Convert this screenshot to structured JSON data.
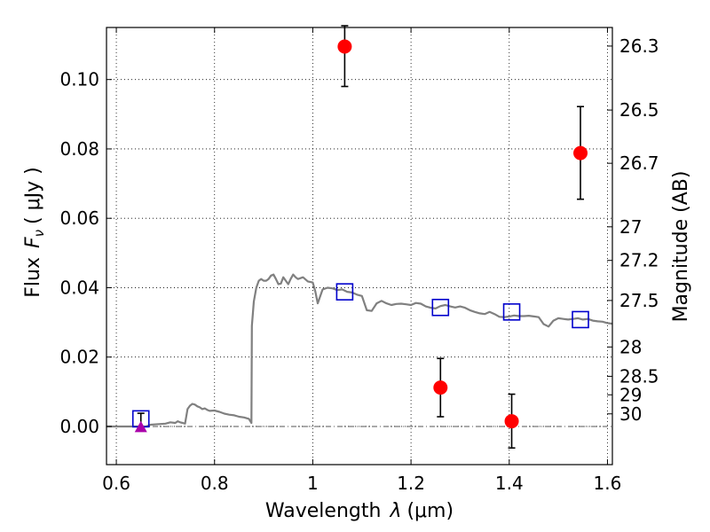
{
  "chart_data": {
    "type": "scatter",
    "xlabel": "Wavelength",
    "xlabel_symbol": "λ",
    "xlabel_unit": "(μm)",
    "ylabel": "Flux",
    "ylabel_symbol": "F",
    "ylabel_symbol_sub": "ν",
    "ylabel_unit": "( μJy )",
    "y2label": "Magnitude (AB)",
    "xlim": [
      0.58,
      1.61
    ],
    "ylim": [
      -0.011,
      0.115
    ],
    "x_ticks": [
      0.6,
      0.8,
      1.0,
      1.2,
      1.4,
      1.6
    ],
    "x_tick_labels": [
      "0.6",
      "0.8",
      "1",
      "1.2",
      "1.4",
      "1.6"
    ],
    "y_ticks": [
      0.0,
      0.02,
      0.04,
      0.06,
      0.08,
      0.1
    ],
    "y_tick_labels": [
      "0.00",
      "0.02",
      "0.04",
      "0.06",
      "0.08",
      "0.10"
    ],
    "y2_ticks": [
      {
        "mag": 26.3,
        "label": "26.3"
      },
      {
        "mag": 26.5,
        "label": "26.5"
      },
      {
        "mag": 26.7,
        "label": "26.7"
      },
      {
        "mag": 27.0,
        "label": "27"
      },
      {
        "mag": 27.2,
        "label": "27.2"
      },
      {
        "mag": 27.5,
        "label": "27.5"
      },
      {
        "mag": 28.0,
        "label": "28"
      },
      {
        "mag": 28.5,
        "label": "28.5"
      },
      {
        "mag": 29.0,
        "label": "29"
      },
      {
        "mag": 30.0,
        "label": "30"
      }
    ],
    "grid": true,
    "colors": {
      "model": "#808080",
      "observed": "#ff0000",
      "synthetic": "#0000cc",
      "upper_limit": "#aa00aa",
      "errorbar": "#000000",
      "zero_line": "#555555"
    },
    "series": [
      {
        "style": "line",
        "color_key": "model",
        "x": [
          0.58,
          0.66,
          0.67,
          0.7,
          0.71,
          0.72,
          0.725,
          0.73,
          0.735,
          0.74,
          0.745,
          0.75,
          0.755,
          0.76,
          0.765,
          0.77,
          0.775,
          0.78,
          0.785,
          0.79,
          0.8,
          0.81,
          0.82,
          0.83,
          0.84,
          0.85,
          0.86,
          0.87,
          0.875,
          0.876,
          0.88,
          0.885,
          0.89,
          0.895,
          0.9,
          0.905,
          0.91,
          0.915,
          0.92,
          0.925,
          0.93,
          0.935,
          0.94,
          0.945,
          0.95,
          0.955,
          0.96,
          0.965,
          0.97,
          0.98,
          0.99,
          1.0,
          1.005,
          1.01,
          1.02,
          1.03,
          1.04,
          1.05,
          1.06,
          1.07,
          1.08,
          1.09,
          1.1,
          1.11,
          1.12,
          1.13,
          1.14,
          1.15,
          1.16,
          1.17,
          1.18,
          1.19,
          1.2,
          1.21,
          1.22,
          1.23,
          1.24,
          1.25,
          1.26,
          1.27,
          1.28,
          1.29,
          1.3,
          1.31,
          1.32,
          1.33,
          1.34,
          1.35,
          1.36,
          1.37,
          1.38,
          1.39,
          1.4,
          1.41,
          1.42,
          1.43,
          1.44,
          1.45,
          1.46,
          1.47,
          1.48,
          1.49,
          1.5,
          1.51,
          1.52,
          1.53,
          1.54,
          1.55,
          1.56,
          1.57,
          1.58,
          1.59,
          1.6,
          1.61
        ],
        "y": [
          0.0,
          0.0,
          0.0005,
          0.0008,
          0.0012,
          0.001,
          0.0015,
          0.0012,
          0.001,
          0.0008,
          0.005,
          0.006,
          0.0065,
          0.0063,
          0.0058,
          0.0055,
          0.005,
          0.0052,
          0.0048,
          0.0045,
          0.0046,
          0.0042,
          0.0037,
          0.0034,
          0.0032,
          0.0028,
          0.0026,
          0.0022,
          0.001,
          0.029,
          0.036,
          0.04,
          0.042,
          0.0425,
          0.042,
          0.042,
          0.0425,
          0.0435,
          0.0438,
          0.0425,
          0.041,
          0.0412,
          0.043,
          0.042,
          0.041,
          0.0425,
          0.0438,
          0.043,
          0.0425,
          0.043,
          0.0418,
          0.0415,
          0.039,
          0.0355,
          0.0395,
          0.04,
          0.0398,
          0.0393,
          0.0395,
          0.0388,
          0.0386,
          0.038,
          0.0376,
          0.0335,
          0.0333,
          0.0355,
          0.0362,
          0.0355,
          0.035,
          0.0353,
          0.0354,
          0.0352,
          0.035,
          0.0356,
          0.0354,
          0.0346,
          0.0342,
          0.034,
          0.0347,
          0.035,
          0.0346,
          0.0343,
          0.0346,
          0.0342,
          0.0335,
          0.033,
          0.0326,
          0.0324,
          0.033,
          0.0324,
          0.0316,
          0.0315,
          0.0317,
          0.032,
          0.0318,
          0.0318,
          0.0319,
          0.0317,
          0.0315,
          0.0295,
          0.0288,
          0.0305,
          0.0312,
          0.031,
          0.0308,
          0.031,
          0.0312,
          0.0308,
          0.031,
          0.0305,
          0.0303,
          0.0302,
          0.0298,
          0.0296
        ]
      },
      {
        "style": "errorbar",
        "marker": "circle",
        "color_key": "observed",
        "points": [
          {
            "x": 1.065,
            "y": 0.1095,
            "yerr_low": 0.098,
            "yerr_high": 0.1155
          },
          {
            "x": 1.26,
            "y": 0.0112,
            "yerr_low": 0.0028,
            "yerr_high": 0.0196
          },
          {
            "x": 1.405,
            "y": 0.0015,
            "yerr_low": -0.0062,
            "yerr_high": 0.0093
          },
          {
            "x": 1.545,
            "y": 0.0788,
            "yerr_low": 0.0655,
            "yerr_high": 0.0922
          }
        ]
      },
      {
        "style": "markers",
        "marker": "open-square",
        "color_key": "synthetic",
        "points": [
          {
            "x": 0.65,
            "y": 0.0022
          },
          {
            "x": 1.065,
            "y": 0.0388
          },
          {
            "x": 1.26,
            "y": 0.0343
          },
          {
            "x": 1.405,
            "y": 0.033
          },
          {
            "x": 1.545,
            "y": 0.0308
          }
        ]
      },
      {
        "style": "errorbar",
        "marker": "triangle",
        "color_key": "upper_limit",
        "points": [
          {
            "x": 0.65,
            "y": -0.0002,
            "yerr_low": -0.0005,
            "yerr_high": 0.0038
          }
        ]
      }
    ]
  }
}
